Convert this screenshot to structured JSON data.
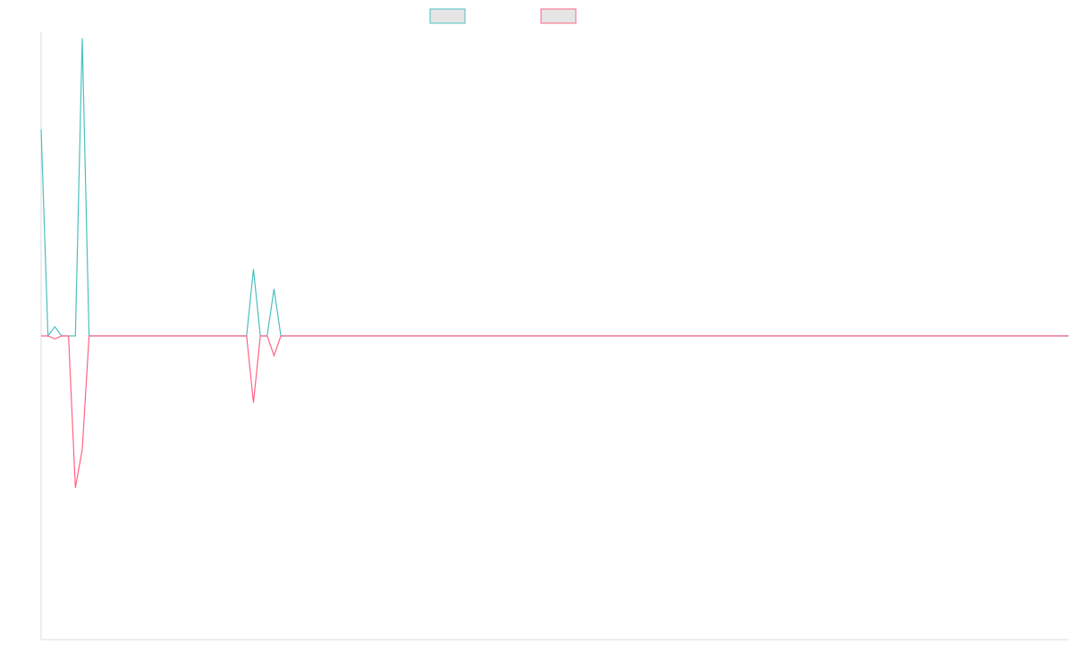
{
  "chart_data": {
    "type": "line",
    "title": "",
    "xlabel": "",
    "ylabel": "",
    "x_count": 151,
    "ylim": [
      -1,
      1
    ],
    "grid": false,
    "legend_position": "top",
    "series": [
      {
        "color": "#4bc0c0",
        "legend_fill": "#e5e5e5",
        "points": [
          [
            0,
            0.68
          ],
          [
            1,
            0.0
          ],
          [
            2,
            0.03
          ],
          [
            3,
            0.0
          ],
          [
            4,
            0.0
          ],
          [
            5,
            0.0
          ],
          [
            6,
            0.98
          ],
          [
            7,
            0.0
          ],
          [
            30,
            0.0
          ],
          [
            31,
            0.22
          ],
          [
            32,
            0.0
          ],
          [
            33,
            0.0
          ],
          [
            34,
            0.155
          ],
          [
            35,
            0.0
          ],
          [
            150,
            0.0
          ]
        ]
      },
      {
        "color": "#ff6384",
        "legend_fill": "#e5e5e5",
        "points": [
          [
            0,
            0.0
          ],
          [
            1,
            0.0
          ],
          [
            2,
            -0.01
          ],
          [
            3,
            0.0
          ],
          [
            4,
            0.0
          ],
          [
            5,
            -0.5
          ],
          [
            6,
            -0.375
          ],
          [
            7,
            0.0
          ],
          [
            30,
            0.0
          ],
          [
            31,
            -0.22
          ],
          [
            32,
            0.0
          ],
          [
            33,
            0.0
          ],
          [
            34,
            -0.065
          ],
          [
            35,
            0.0
          ],
          [
            150,
            0.0
          ]
        ]
      }
    ]
  }
}
